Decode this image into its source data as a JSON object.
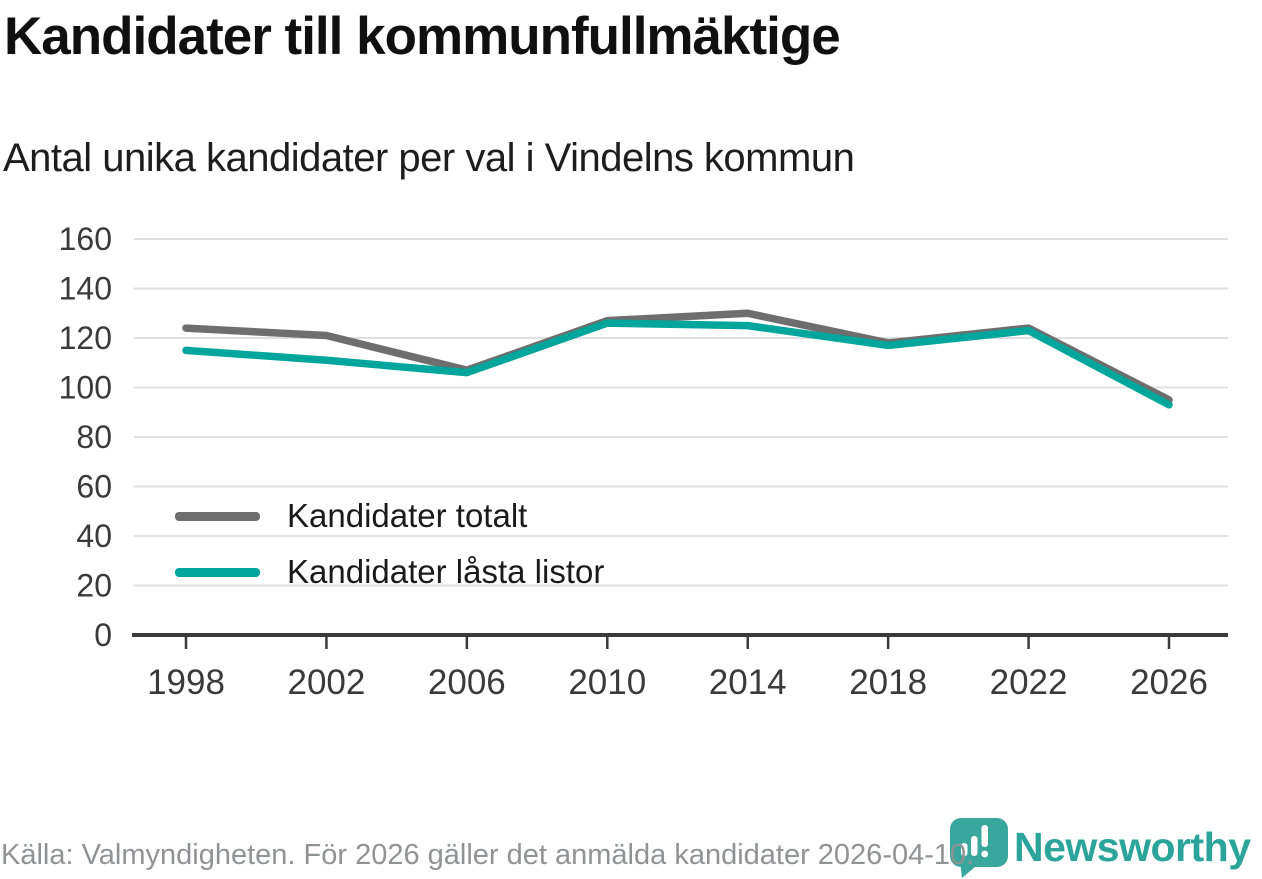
{
  "chart_data": {
    "type": "line",
    "title": "Kandidater till kommunfullmäktige",
    "subtitle": "Antal unika kandidater per val i Vindelns kommun",
    "categories": [
      "1998",
      "2002",
      "2006",
      "2010",
      "2014",
      "2018",
      "2022",
      "2026"
    ],
    "series": [
      {
        "name": "Kandidater totalt",
        "color": "#6e6e6e",
        "values": [
          124,
          121,
          107,
          127,
          130,
          118,
          124,
          95
        ]
      },
      {
        "name": "Kandidater låsta listor",
        "color": "#00a69c",
        "values": [
          115,
          111,
          106,
          126,
          125,
          117,
          123,
          93
        ]
      }
    ],
    "xlabel": "",
    "ylabel": "",
    "ylim": [
      0,
      160
    ],
    "ytick_step": 20,
    "grid": "horizontal-only",
    "legend_position": "inside-bottom-left"
  },
  "footer": {
    "source": "Källa: Valmyndigheten. För 2026 gäller det anmälda kandidater 2026-04-10.",
    "brand": "Newsworthy"
  },
  "icons": {
    "logo": "newsworthy-pin-barchart-icon"
  },
  "colors": {
    "grid": "#e0e0e0",
    "axis": "#3a3a3a",
    "axis_text": "#3a3a3a",
    "title_text": "#101010",
    "subtitle_text": "#1d1d1d",
    "legend_text": "#1a1a1a",
    "footer_text": "#909394",
    "brand_teal": "#2ba49c",
    "logo_badge_teal": "#3aa79f"
  }
}
